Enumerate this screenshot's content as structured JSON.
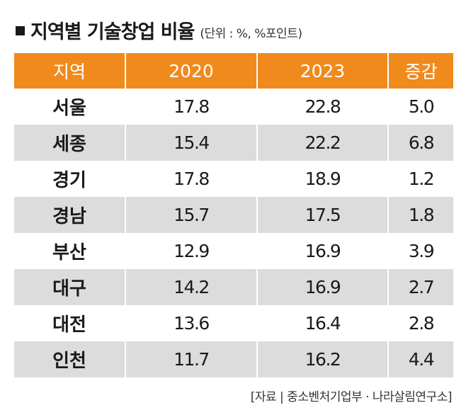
{
  "title": "지역별 기술창업 비율",
  "unit": "(단위 : %, %포인트)",
  "source": "[자료 | 중소벤처기업부 · 나라살림연구소]",
  "colors": {
    "header_bg": "#f08a1c",
    "alt_row": "#dcdcdc"
  },
  "chart_data": {
    "type": "table",
    "title": "지역별 기술창업 비율",
    "columns": [
      "지역",
      "2020",
      "2023",
      "증감"
    ],
    "rows": [
      [
        "서울",
        "17.8",
        "22.8",
        "5.0"
      ],
      [
        "세종",
        "15.4",
        "22.2",
        "6.8"
      ],
      [
        "경기",
        "17.8",
        "18.9",
        "1.2"
      ],
      [
        "경남",
        "15.7",
        "17.5",
        "1.8"
      ],
      [
        "부산",
        "12.9",
        "16.9",
        "3.9"
      ],
      [
        "대구",
        "14.2",
        "16.9",
        "2.7"
      ],
      [
        "대전",
        "13.6",
        "16.4",
        "2.8"
      ],
      [
        "인천",
        "11.7",
        "16.2",
        "4.4"
      ]
    ]
  }
}
